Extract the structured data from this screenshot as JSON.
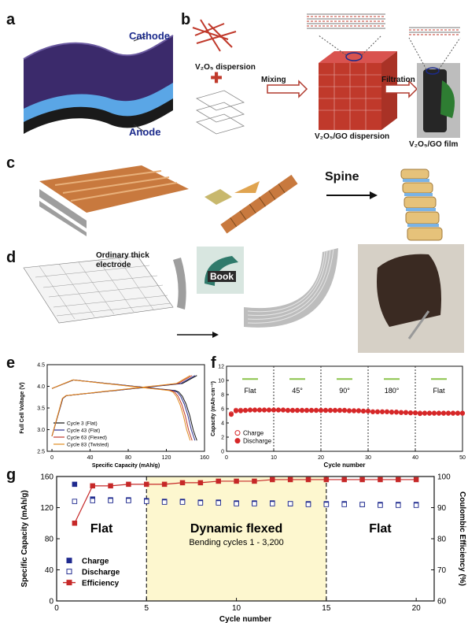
{
  "panel_letters": {
    "a": "a",
    "b": "b",
    "c": "c",
    "d": "d",
    "e": "e",
    "f": "f",
    "g": "g"
  },
  "panel_a": {
    "cathode": "Cathode",
    "anode": "Anode"
  },
  "panel_b": {
    "v2o5_dispersion": "V₂O₅ dispersion",
    "mixing": "Mixing",
    "filtration": "Filtration",
    "mix_dispersion": "V₂O₅/GO dispersion",
    "film": "V₂O₅/GO film"
  },
  "panel_c": {
    "spine": "Spine"
  },
  "panel_d": {
    "ordinary": "Ordinary thick\nelectrode",
    "book": "Book"
  },
  "chart_data": [
    {
      "id": "e",
      "type": "line",
      "xlabel": "Specific Capacity (mAh/g)",
      "ylabel": "Full Cell Voltage (V)",
      "xlim": [
        -5,
        160
      ],
      "ylim": [
        2.5,
        4.5
      ],
      "xticks": [
        0,
        40,
        80,
        120,
        160
      ],
      "yticks": [
        2.5,
        3.0,
        3.5,
        4.0,
        4.5
      ],
      "legend_position": "bottom-left",
      "series": [
        {
          "name": "Cycle 3 (Flat)",
          "color": "#111111",
          "capacity": 152
        },
        {
          "name": "Cycle 43 (Flat)",
          "color": "#2a2f8f",
          "capacity": 150
        },
        {
          "name": "Cycle 63 (Flexed)",
          "color": "#c0392b",
          "capacity": 147
        },
        {
          "name": "Cycle 83 (Twisted)",
          "color": "#e08a1e",
          "capacity": 145
        }
      ]
    },
    {
      "id": "f",
      "type": "scatter",
      "xlabel": "Cycle number",
      "ylabel": "Capacity (mAh·cm⁻²)",
      "xlim": [
        0,
        50
      ],
      "ylim": [
        0,
        12
      ],
      "xticks": [
        0,
        10,
        20,
        30,
        40,
        50
      ],
      "yticks": [
        0,
        2,
        4,
        6,
        8,
        10,
        12
      ],
      "sections": [
        {
          "label": "Flat",
          "x_start": 0,
          "x_end": 10
        },
        {
          "label": "45°",
          "x_start": 10,
          "x_end": 20
        },
        {
          "label": "90°",
          "x_start": 20,
          "x_end": 30
        },
        {
          "label": "180°",
          "x_start": 30,
          "x_end": 40
        },
        {
          "label": "Flat",
          "x_start": 40,
          "x_end": 50
        }
      ],
      "legend_position": "bottom-left",
      "series": [
        {
          "name": "Charge",
          "marker": "open-circle",
          "color": "#d62728",
          "values": [
            5.3,
            5.8,
            5.8,
            5.8,
            5.85,
            5.85,
            5.85,
            5.85,
            5.85,
            5.85,
            5.85,
            5.85,
            5.8,
            5.8,
            5.8,
            5.8,
            5.8,
            5.8,
            5.8,
            5.8,
            5.8,
            5.8,
            5.8,
            5.8,
            5.8,
            5.75,
            5.75,
            5.75,
            5.7,
            5.7,
            5.6,
            5.6,
            5.6,
            5.6,
            5.55,
            5.55,
            5.5,
            5.5,
            5.45,
            5.45,
            5.4,
            5.4,
            5.4,
            5.4,
            5.4,
            5.4,
            5.4,
            5.4,
            5.4,
            5.4
          ]
        },
        {
          "name": "Discharge",
          "marker": "filled-circle",
          "color": "#d62728",
          "values": [
            5.2,
            5.7,
            5.7,
            5.75,
            5.8,
            5.8,
            5.8,
            5.8,
            5.8,
            5.8,
            5.8,
            5.8,
            5.75,
            5.75,
            5.75,
            5.75,
            5.75,
            5.75,
            5.75,
            5.75,
            5.75,
            5.75,
            5.75,
            5.75,
            5.75,
            5.7,
            5.7,
            5.7,
            5.65,
            5.65,
            5.55,
            5.55,
            5.55,
            5.55,
            5.5,
            5.5,
            5.45,
            5.45,
            5.4,
            5.4,
            5.3,
            5.35,
            5.35,
            5.35,
            5.35,
            5.35,
            5.35,
            5.35,
            5.35,
            5.35
          ]
        }
      ]
    },
    {
      "id": "g",
      "type": "scatter",
      "xlabel": "Cycle number",
      "ylabel": "Specific Capacity (mAh/g)",
      "y2label": "Coulombic Efficiency (%)",
      "xlim": [
        0,
        21
      ],
      "ylim": [
        0,
        160
      ],
      "y2lim": [
        60,
        100
      ],
      "xticks": [
        0,
        5,
        10,
        15,
        20
      ],
      "yticks": [
        0,
        40,
        80,
        120,
        160
      ],
      "y2ticks": [
        60,
        70,
        80,
        90,
        100
      ],
      "region": {
        "x_start": 5,
        "x_end": 15,
        "title": "Dynamic flexed",
        "subtitle": "Bending cycles 1 - 3,200"
      },
      "region_labels": [
        "Flat",
        "Flat"
      ],
      "legend_position": "left",
      "x": [
        1,
        2,
        3,
        4,
        5,
        6,
        7,
        8,
        9,
        10,
        11,
        12,
        13,
        14,
        15,
        16,
        17,
        18,
        19,
        20
      ],
      "series": [
        {
          "name": "Charge",
          "marker": "filled-square",
          "color": "#1f2a8f",
          "axis": "left",
          "values": [
            150,
            131,
            130,
            130,
            129,
            128,
            128,
            127,
            127,
            126,
            126,
            126,
            125,
            125,
            125,
            125,
            124,
            124,
            124,
            124
          ]
        },
        {
          "name": "Discharge",
          "marker": "open-square",
          "color": "#1f2a8f",
          "axis": "left",
          "values": [
            128,
            129,
            129,
            129,
            128,
            127,
            127,
            126,
            126,
            125,
            125,
            125,
            125,
            124,
            124,
            124,
            124,
            123,
            123,
            123
          ]
        },
        {
          "name": "Efficiency",
          "marker": "line-square",
          "color": "#c62828",
          "axis": "right",
          "values": [
            85,
            97,
            97,
            97.5,
            97.5,
            97.5,
            98,
            98,
            98.5,
            98.5,
            98.5,
            99,
            99,
            99,
            99,
            99,
            99,
            99,
            99,
            99
          ]
        }
      ]
    }
  ]
}
